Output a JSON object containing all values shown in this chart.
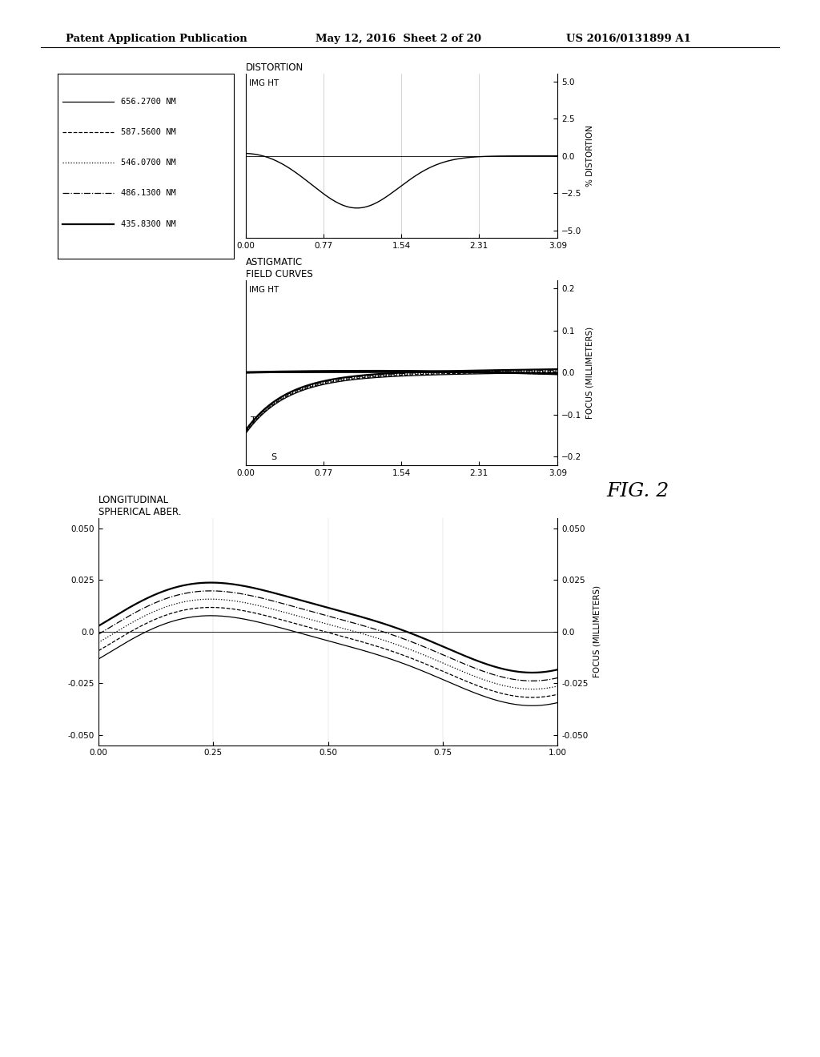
{
  "header_left": "Patent Application Publication",
  "header_mid": "May 12, 2016  Sheet 2 of 20",
  "header_right": "US 2016/0131899 A1",
  "fig_label": "FIG. 2",
  "wavelengths": [
    "656.2700 NM",
    "587.5600 NM",
    "546.0700 NM",
    "486.1300 NM",
    "435.8300 NM"
  ],
  "line_styles": [
    "-",
    "--",
    ":",
    "-.",
    "-"
  ],
  "line_widths": [
    0.9,
    0.9,
    0.9,
    0.9,
    1.6
  ],
  "background": "#ffffff",
  "plot1_title": "DISTORTION",
  "plot1_ylabel": "% DISTORTION",
  "plot1_xlabel": "IMG HT",
  "plot1_yticks": [
    -5.0,
    -2.5,
    0.0,
    2.5,
    5.0
  ],
  "plot1_xticks": [
    0.0,
    0.77,
    1.54,
    2.31,
    3.09
  ],
  "plot1_xlim": [
    0.0,
    3.09
  ],
  "plot1_ylim": [
    -5.5,
    5.5
  ],
  "plot2_title": "ASTIGMATIC\nFIELD CURVES",
  "plot2_ylabel": "FOCUS (MILLIMETERS)",
  "plot2_xlabel": "IMG HT",
  "plot2_yticks": [
    -0.2,
    -0.1,
    0.0,
    0.1,
    0.2
  ],
  "plot2_xticks": [
    0.0,
    0.77,
    1.54,
    2.31,
    3.09
  ],
  "plot2_xlim": [
    0.0,
    3.09
  ],
  "plot2_ylim": [
    -0.22,
    0.22
  ],
  "plot3_title": "LONGITUDINAL\nSPHERICAL ABER.",
  "plot3_ylabel": "FOCUS (MILLIMETERS)",
  "plot3_xlabel": "",
  "plot3_yticks": [
    -0.05,
    -0.025,
    0.0,
    0.025,
    0.05
  ],
  "plot3_xticks": [
    0.0,
    0.25,
    0.5,
    0.75,
    1.0
  ],
  "plot3_xlim": [
    0.0,
    1.0
  ],
  "plot3_ylim": [
    -0.055,
    0.055
  ]
}
